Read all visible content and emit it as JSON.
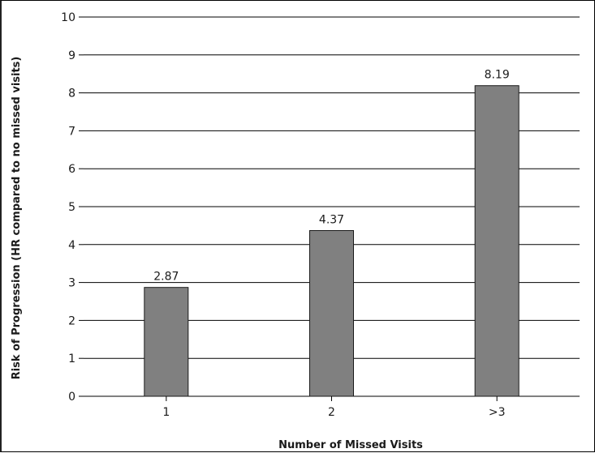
{
  "chart_data": {
    "type": "bar",
    "categories": [
      "1",
      "2",
      ">3"
    ],
    "values": [
      2.87,
      4.37,
      8.19
    ],
    "value_labels": [
      "2.87",
      "4.37",
      "8.19"
    ],
    "xlabel": "Number of Missed Visits",
    "ylabel": "Risk of Progression (HR compared to no missed visits)",
    "ylim": [
      0,
      10
    ],
    "yticks": [
      "0",
      "1",
      "2",
      "3",
      "4",
      "5",
      "6",
      "7",
      "8",
      "9",
      "10"
    ],
    "grid": true,
    "legend": "none",
    "colors": {
      "bar_fill": "#808080",
      "bar_stroke": "#1a1a1a",
      "grid": "#000000"
    }
  }
}
